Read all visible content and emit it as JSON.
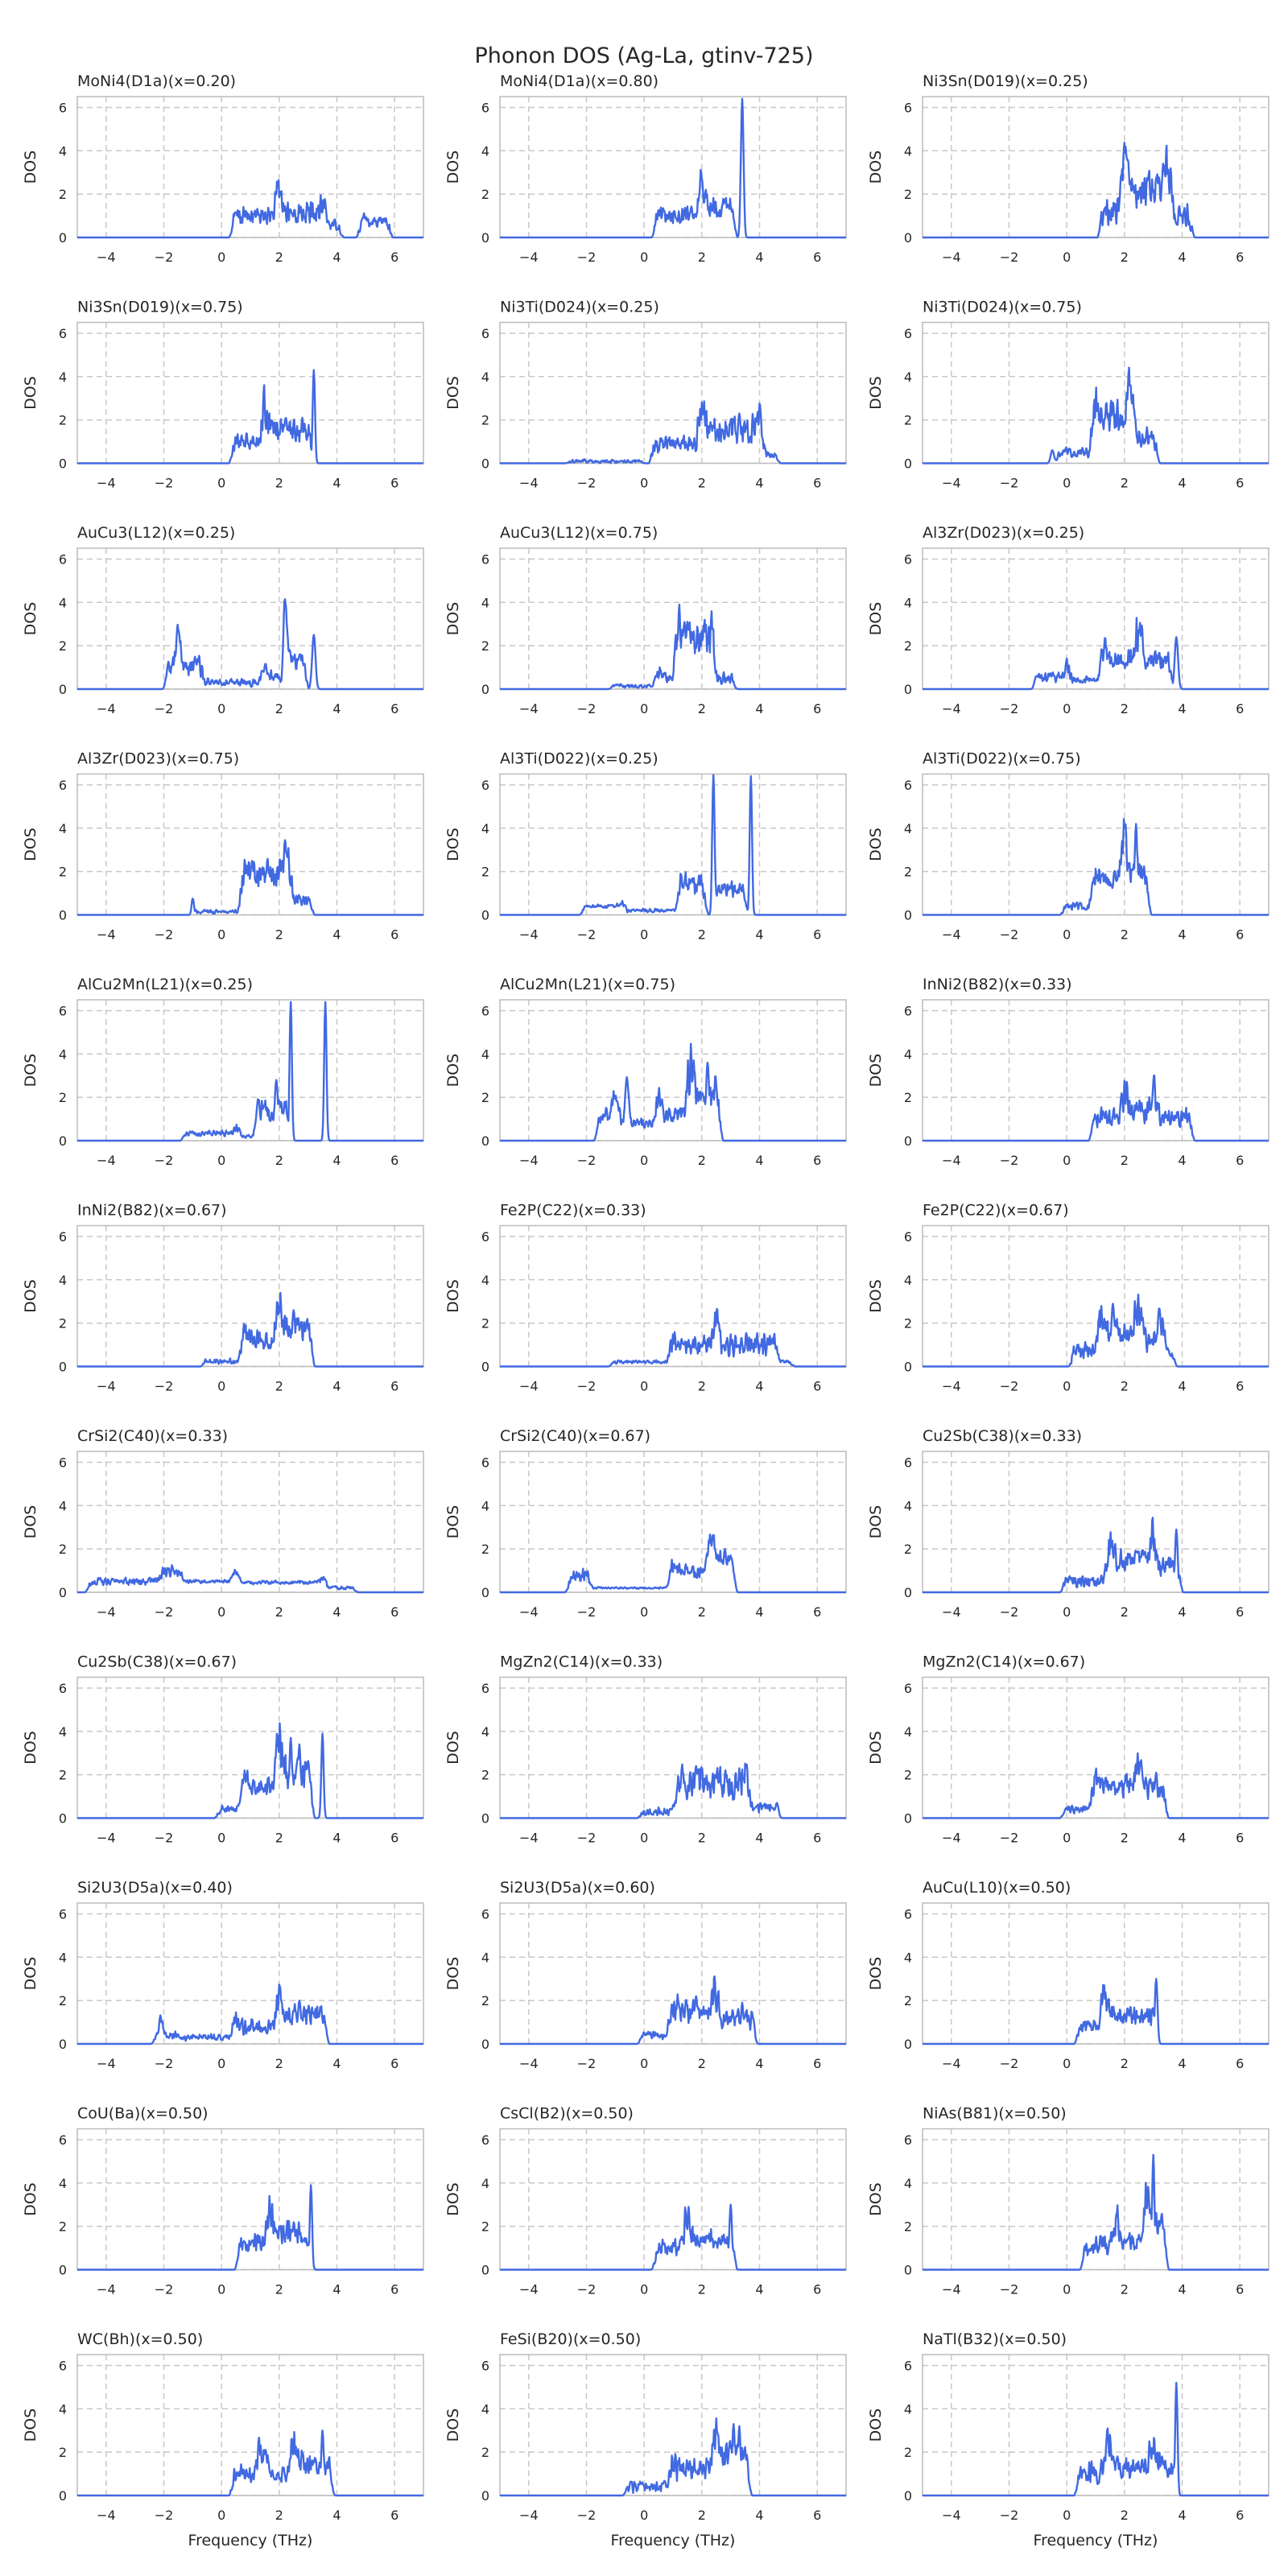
{
  "title": "Phonon DOS (Ag-La, gtinv-725)",
  "chart_data": {
    "type": "line",
    "layout": {
      "rows": 11,
      "cols": 3
    },
    "xlim": [
      -5,
      7
    ],
    "ylim": [
      0,
      6.5
    ],
    "xticks": [
      -4,
      -2,
      0,
      2,
      4,
      6
    ],
    "yticks": [
      0,
      2,
      4,
      6
    ],
    "xlabel": "Frequency (THz)",
    "ylabel": "DOS",
    "grid": true,
    "line_color": "#4169e1",
    "panels": [
      {
        "title": "MoNi4(D1a)(x=0.20)",
        "feats": [
          [
            0.5,
            2.0,
            1.0,
            0.5
          ],
          [
            2.0,
            3.5,
            1.1,
            0.6
          ],
          [
            3.6,
            4.0,
            0.6,
            0.3
          ],
          [
            4.9,
            5.7,
            0.8,
            0.4
          ]
        ]
      },
      {
        "title": "MoNi4(D1a)(x=0.80)",
        "feats": [
          [
            0.5,
            2.0,
            1.0,
            0.5
          ],
          [
            2.0,
            3.0,
            1.5,
            0.6
          ],
          [
            "p",
            3.4,
            6.4,
            0.08
          ]
        ]
      },
      {
        "title": "Ni3Sn(D019)(x=0.25)",
        "feats": [
          [
            1.3,
            2.0,
            1.2,
            0.7
          ],
          [
            2.0,
            3.5,
            2.2,
            0.9
          ],
          [
            3.5,
            4.2,
            1.0,
            0.6
          ],
          [
            "p",
            2.2,
            2.6,
            0.1
          ],
          [
            "p",
            3.2,
            2.3,
            0.1
          ]
        ]
      },
      {
        "title": "Ni3Sn(D019)(x=0.75)",
        "feats": [
          [
            0.5,
            1.5,
            1.1,
            0.5
          ],
          [
            1.5,
            3.0,
            1.5,
            0.7
          ],
          [
            "p",
            2.8,
            2.1,
            0.08
          ],
          [
            "p",
            3.2,
            4.3,
            0.07
          ]
        ]
      },
      {
        "title": "Ni3Ti(D024)(x=0.25)",
        "feats": [
          [
            -2.5,
            -0.2,
            0.1,
            0.1
          ],
          [
            0.4,
            2.0,
            0.9,
            0.5
          ],
          [
            2.0,
            4.0,
            1.6,
            0.8
          ],
          [
            4.0,
            4.5,
            0.4,
            0.2
          ],
          [
            "p",
            3.3,
            2.3,
            0.1
          ]
        ]
      },
      {
        "title": "Ni3Ti(D024)(x=0.75)",
        "feats": [
          [
            "p",
            -0.5,
            0.6,
            0.1
          ],
          [
            -0.2,
            1.0,
            0.5,
            0.3
          ],
          [
            1.0,
            2.2,
            2.2,
            0.9
          ],
          [
            2.2,
            3.0,
            1.2,
            0.6
          ],
          [
            "p",
            1.6,
            2.8,
            0.1
          ]
        ]
      },
      {
        "title": "AuCu3(L12)(x=0.25)",
        "feats": [
          [
            "p",
            -1.5,
            2.0,
            0.12
          ],
          [
            -1.8,
            -0.8,
            1.0,
            0.5
          ],
          [
            -0.8,
            1.5,
            0.3,
            0.2
          ],
          [
            1.5,
            2.0,
            0.6,
            0.3
          ],
          [
            "p",
            2.2,
            3.4,
            0.1
          ],
          [
            2.3,
            2.8,
            1.3,
            0.5
          ],
          [
            "p",
            3.2,
            2.5,
            0.1
          ]
        ]
      },
      {
        "title": "AuCu3(L12)(x=0.75)",
        "feats": [
          [
            -1.0,
            0.5,
            0.15,
            0.1
          ],
          [
            0.5,
            1.2,
            0.6,
            0.3
          ],
          [
            1.2,
            2.3,
            2.4,
            1.0
          ],
          [
            "p",
            1.5,
            3.1,
            0.1
          ],
          [
            2.3,
            3.0,
            0.5,
            0.3
          ]
        ]
      },
      {
        "title": "Al3Zr(D023)(x=0.25)",
        "feats": [
          [
            -1.0,
            0.0,
            0.6,
            0.3
          ],
          [
            0.0,
            1.3,
            0.4,
            0.2
          ],
          [
            1.3,
            2.5,
            1.4,
            0.6
          ],
          [
            2.5,
            3.5,
            1.3,
            0.5
          ],
          [
            "p",
            3.8,
            2.4,
            0.1
          ]
        ]
      },
      {
        "title": "Al3Zr(D023)(x=0.75)",
        "feats": [
          [
            "p",
            -1.0,
            0.7,
            0.06
          ],
          [
            -0.9,
            0.8,
            0.15,
            0.1
          ],
          [
            0.8,
            2.3,
            2.0,
            0.8
          ],
          [
            "p",
            2.2,
            3.0,
            0.1
          ],
          [
            2.3,
            3.0,
            0.7,
            0.3
          ]
        ]
      },
      {
        "title": "Al3Ti(D022)(x=0.25)",
        "feats": [
          [
            -2.0,
            -0.8,
            0.4,
            0.1
          ],
          [
            -0.8,
            1.2,
            0.2,
            0.1
          ],
          [
            1.3,
            2.0,
            1.4,
            0.6
          ],
          [
            "p",
            2.4,
            6.4,
            0.07
          ],
          [
            2.6,
            3.4,
            1.2,
            0.4
          ],
          [
            "p",
            3.7,
            6.4,
            0.07
          ]
        ]
      },
      {
        "title": "Al3Ti(D022)(x=0.75)",
        "feats": [
          [
            0.0,
            1.0,
            0.4,
            0.2
          ],
          [
            1.0,
            2.0,
            1.6,
            0.5
          ],
          [
            2.0,
            2.7,
            2.0,
            0.7
          ],
          [
            "p",
            2.4,
            4.2,
            0.08
          ]
        ]
      },
      {
        "title": "AlCu2Mn(L21)(x=0.25)",
        "feats": [
          [
            -1.2,
            0.5,
            0.35,
            0.15
          ],
          [
            0.5,
            1.3,
            0.2,
            0.1
          ],
          [
            1.3,
            2.2,
            1.4,
            0.6
          ],
          [
            "p",
            1.9,
            2.8,
            0.1
          ],
          [
            "p",
            2.4,
            6.4,
            0.07
          ],
          [
            "p",
            3.6,
            6.4,
            0.07
          ]
        ]
      },
      {
        "title": "AlCu2Mn(L21)(x=0.75)",
        "feats": [
          [
            -1.5,
            -1.0,
            1.2,
            0.4
          ],
          [
            "p",
            -0.6,
            2.1,
            0.1
          ],
          [
            -1.0,
            0.5,
            0.8,
            0.3
          ],
          [
            0.5,
            1.6,
            1.2,
            0.5
          ],
          [
            1.6,
            2.5,
            2.2,
            0.9
          ],
          [
            "p",
            2.2,
            3.6,
            0.1
          ]
        ]
      },
      {
        "title": "InNi2(B82)(x=0.33)",
        "feats": [
          [
            1.0,
            2.0,
            1.0,
            0.6
          ],
          [
            2.0,
            3.0,
            1.3,
            0.6
          ],
          [
            3.0,
            4.2,
            1.1,
            0.5
          ],
          [
            "p",
            1.9,
            2.1,
            0.1
          ]
        ]
      },
      {
        "title": "InNi2(B82)(x=0.67)",
        "feats": [
          [
            -0.5,
            0.8,
            0.25,
            0.15
          ],
          [
            0.8,
            2.0,
            1.2,
            0.5
          ],
          [
            2.0,
            3.0,
            1.8,
            0.8
          ],
          [
            "p",
            2.5,
            2.6,
            0.1
          ]
        ]
      },
      {
        "title": "Fe2P(C22)(x=0.33)",
        "feats": [
          [
            -1.0,
            1.0,
            0.2,
            0.1
          ],
          [
            1.0,
            2.5,
            1.0,
            0.6
          ],
          [
            2.5,
            4.5,
            1.0,
            0.6
          ],
          [
            4.5,
            5.0,
            0.2,
            0.1
          ]
        ]
      },
      {
        "title": "Fe2P(C22)(x=0.67)",
        "feats": [
          [
            0.3,
            1.2,
            0.8,
            0.5
          ],
          [
            1.2,
            2.5,
            1.6,
            0.8
          ],
          [
            "p",
            1.6,
            2.9,
            0.1
          ],
          [
            2.5,
            3.3,
            1.2,
            0.6
          ],
          [
            "p",
            3.2,
            2.3,
            0.1
          ],
          [
            3.3,
            3.6,
            0.6,
            0.2
          ]
        ]
      },
      {
        "title": "CrSi2(C40)(x=0.33)",
        "feats": [
          [
            -4.5,
            -1.5,
            0.5,
            0.2
          ],
          [
            -2.0,
            0.5,
            0.5,
            0.1
          ],
          [
            0.5,
            3.5,
            0.45,
            0.1
          ],
          [
            3.5,
            4.5,
            0.2,
            0.1
          ]
        ]
      },
      {
        "title": "CrSi2(C40)(x=0.67)",
        "feats": [
          [
            -2.5,
            -2.0,
            0.7,
            0.3
          ],
          [
            -2.0,
            1.0,
            0.2,
            0.05
          ],
          [
            1.0,
            2.3,
            1.0,
            0.4
          ],
          [
            2.3,
            3.0,
            1.6,
            0.5
          ],
          [
            "p",
            2.8,
            2.0,
            0.1
          ]
        ]
      },
      {
        "title": "Cu2Sb(C38)(x=0.33)",
        "feats": [
          [
            0.0,
            1.5,
            0.5,
            0.3
          ],
          [
            1.5,
            3.0,
            1.5,
            0.6
          ],
          [
            3.0,
            3.8,
            1.2,
            0.5
          ],
          [
            "p",
            3.8,
            2.9,
            0.08
          ]
        ]
      },
      {
        "title": "Cu2Sb(C38)(x=0.67)",
        "feats": [
          [
            0.0,
            0.8,
            0.4,
            0.2
          ],
          [
            0.8,
            2.0,
            1.5,
            0.6
          ],
          [
            2.0,
            3.0,
            2.0,
            0.9
          ],
          [
            "p",
            2.4,
            3.7,
            0.08
          ],
          [
            "p",
            2.7,
            3.4,
            0.08
          ],
          [
            "p",
            3.5,
            3.9,
            0.07
          ]
        ]
      },
      {
        "title": "MgZn2(C14)(x=0.33)",
        "feats": [
          [
            0.0,
            1.2,
            0.3,
            0.2
          ],
          [
            1.2,
            3.5,
            1.5,
            0.9
          ],
          [
            "p",
            1.8,
            2.4,
            0.1
          ],
          [
            3.5,
            4.5,
            0.5,
            0.3
          ],
          [
            "p",
            4.6,
            0.7,
            0.1
          ]
        ]
      },
      {
        "title": "MgZn2(C14)(x=0.67)",
        "feats": [
          [
            0.0,
            1.0,
            0.4,
            0.2
          ],
          [
            1.0,
            2.5,
            1.5,
            0.6
          ],
          [
            2.5,
            3.3,
            1.4,
            0.6
          ],
          [
            "p",
            2.6,
            2.2,
            0.1
          ],
          [
            "p",
            3.1,
            2.1,
            0.08
          ]
        ]
      },
      {
        "title": "Si2U3(D5a)(x=0.40)",
        "feats": [
          [
            "p",
            -2.1,
            0.8,
            0.1
          ],
          [
            -2.2,
            -1.5,
            0.4,
            0.2
          ],
          [
            -1.2,
            0.5,
            0.3,
            0.2
          ],
          [
            0.5,
            2.0,
            0.8,
            0.4
          ],
          [
            2.0,
            3.5,
            1.4,
            0.6
          ],
          [
            "p",
            2.7,
            2.0,
            0.1
          ]
        ]
      },
      {
        "title": "Si2U3(D5a)(x=0.60)",
        "feats": [
          [
            0.0,
            1.0,
            0.4,
            0.2
          ],
          [
            1.0,
            2.5,
            1.5,
            0.7
          ],
          [
            "p",
            1.8,
            2.2,
            0.1
          ],
          [
            2.5,
            3.7,
            1.2,
            0.6
          ],
          [
            "p",
            3.4,
            1.9,
            0.08
          ]
        ]
      },
      {
        "title": "AuCu(L10)(x=0.50)",
        "feats": [
          [
            0.5,
            1.3,
            0.8,
            0.4
          ],
          [
            1.3,
            3.0,
            1.3,
            0.5
          ],
          [
            "p",
            1.3,
            1.6,
            0.1
          ],
          [
            "p",
            3.1,
            3.0,
            0.08
          ]
        ]
      },
      {
        "title": "CoU(Ba)(x=0.50)",
        "feats": [
          [
            0.7,
            1.7,
            1.2,
            0.5
          ],
          [
            1.7,
            3.0,
            1.6,
            0.7
          ],
          [
            "p",
            3.1,
            3.9,
            0.07
          ]
        ]
      },
      {
        "title": "CsCl(B2)(x=0.50)",
        "feats": [
          [
            0.5,
            1.5,
            1.0,
            0.5
          ],
          [
            1.5,
            3.0,
            1.4,
            0.5
          ],
          [
            "p",
            3.0,
            3.0,
            0.08
          ]
        ]
      },
      {
        "title": "NiAs(B81)(x=0.50)",
        "feats": [
          [
            0.7,
            1.7,
            1.1,
            0.5
          ],
          [
            1.7,
            2.8,
            1.3,
            0.5
          ],
          [
            2.8,
            3.3,
            2.2,
            0.6
          ],
          [
            "p",
            3.0,
            5.3,
            0.07
          ]
        ]
      },
      {
        "title": "WC(Bh)(x=0.50)",
        "feats": [
          [
            0.5,
            1.5,
            1.0,
            0.5
          ],
          [
            1.3,
            2.5,
            1.0,
            0.4
          ],
          [
            2.5,
            3.7,
            1.5,
            0.7
          ],
          [
            "p",
            3.5,
            3.0,
            0.08
          ]
        ]
      },
      {
        "title": "FeSi(B20)(x=0.50)",
        "feats": [
          [
            -0.5,
            1.0,
            0.4,
            0.3
          ],
          [
            1.0,
            2.5,
            1.2,
            0.6
          ],
          [
            2.5,
            3.5,
            1.8,
            0.8
          ],
          [
            "p",
            3.1,
            3.3,
            0.08
          ],
          [
            "p",
            3.3,
            3.2,
            0.08
          ]
        ]
      },
      {
        "title": "NaTl(B32)(x=0.50)",
        "feats": [
          [
            0.5,
            1.5,
            1.1,
            0.6
          ],
          [
            "p",
            1.4,
            2.2,
            0.1
          ],
          [
            1.5,
            3.0,
            1.3,
            0.6
          ],
          [
            3.0,
            3.7,
            1.4,
            0.6
          ],
          [
            "p",
            3.8,
            5.2,
            0.07
          ]
        ]
      }
    ]
  }
}
